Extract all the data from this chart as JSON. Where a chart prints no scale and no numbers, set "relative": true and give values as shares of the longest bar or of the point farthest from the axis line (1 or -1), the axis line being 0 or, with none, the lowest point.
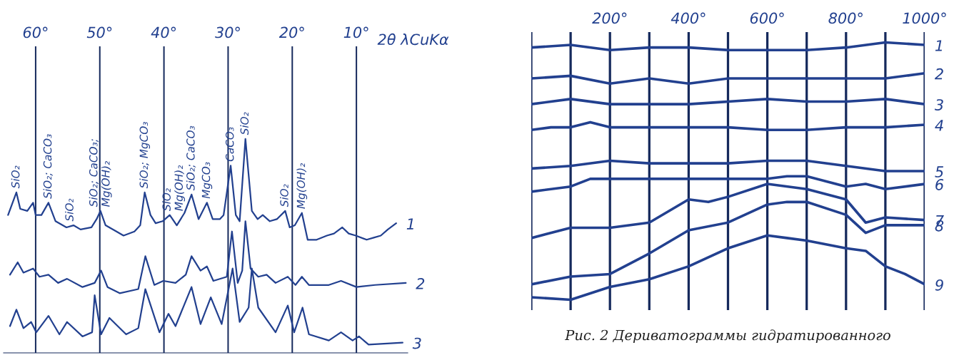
{
  "chart_data": [
    {
      "type": "line",
      "relative": true,
      "xlabel": "2θ λCuKα",
      "xlim": [
        65,
        2
      ],
      "xticks": [
        {
          "value": 60,
          "label": "60°"
        },
        {
          "value": 50,
          "label": "50°"
        },
        {
          "value": 40,
          "label": "40°"
        },
        {
          "value": 30,
          "label": "30°"
        },
        {
          "value": 20,
          "label": "20°"
        },
        {
          "value": 10,
          "label": "10°"
        }
      ],
      "grid": "x",
      "legend": false,
      "tick_labels": "x",
      "marker": "none",
      "line_style": "solid",
      "series": [
        {
          "name": "1",
          "color": "#22408f",
          "x": [
            64.3,
            63.0,
            62.4,
            61.3,
            60.4,
            60.0,
            59.1,
            58.0,
            56.9,
            55.2,
            54.1,
            53.0,
            51.3,
            50.5,
            49.9,
            49.1,
            47.4,
            46.3,
            44.6,
            43.7,
            43.0,
            42.1,
            41.3,
            40.2,
            39.1,
            38.0,
            36.8,
            35.7,
            34.6,
            33.3,
            32.4,
            31.3,
            30.7,
            29.6,
            28.8,
            28.2,
            27.3,
            26.3,
            25.4,
            24.6,
            23.5,
            22.4,
            21.1,
            20.4,
            19.6,
            18.5,
            17.6,
            16.2,
            14.6,
            13.5,
            12.2,
            11.2,
            10.1,
            8.4,
            7.3,
            6.2,
            5.1,
            3.8
          ],
          "values": [
            0.63,
            0.74,
            0.66,
            0.65,
            0.69,
            0.63,
            0.63,
            0.69,
            0.6,
            0.57,
            0.58,
            0.56,
            0.57,
            0.61,
            0.65,
            0.58,
            0.55,
            0.53,
            0.55,
            0.58,
            0.74,
            0.63,
            0.59,
            0.6,
            0.63,
            0.58,
            0.64,
            0.73,
            0.61,
            0.69,
            0.61,
            0.61,
            0.63,
            0.87,
            0.63,
            0.6,
            1.0,
            0.65,
            0.61,
            0.63,
            0.6,
            0.61,
            0.65,
            0.57,
            0.58,
            0.64,
            0.51,
            0.51,
            0.53,
            0.54,
            0.57,
            0.54,
            0.53,
            0.51,
            0.52,
            0.53,
            0.56,
            0.59
          ]
        },
        {
          "name": "2",
          "color": "#22408f",
          "x": [
            64.0,
            62.8,
            61.9,
            60.4,
            59.4,
            58.0,
            56.5,
            55.1,
            52.7,
            50.8,
            49.8,
            48.8,
            46.9,
            44.0,
            42.9,
            41.5,
            40.1,
            38.2,
            36.6,
            35.7,
            34.3,
            33.3,
            32.3,
            30.2,
            29.4,
            28.5,
            27.8,
            27.3,
            26.5,
            25.3,
            24.0,
            22.6,
            20.7,
            19.5,
            18.5,
            17.4,
            14.3,
            12.4,
            10.0,
            7.1,
            2.3
          ],
          "values": [
            0.34,
            0.4,
            0.35,
            0.37,
            0.33,
            0.34,
            0.3,
            0.32,
            0.28,
            0.3,
            0.36,
            0.28,
            0.25,
            0.27,
            0.43,
            0.29,
            0.31,
            0.3,
            0.34,
            0.43,
            0.36,
            0.38,
            0.31,
            0.33,
            0.55,
            0.3,
            0.36,
            0.6,
            0.37,
            0.33,
            0.34,
            0.3,
            0.33,
            0.29,
            0.33,
            0.29,
            0.29,
            0.31,
            0.28,
            0.29,
            0.3
          ]
        },
        {
          "name": "3",
          "color": "#22408f",
          "x": [
            64.0,
            63.0,
            61.9,
            60.7,
            59.9,
            58.0,
            56.3,
            55.1,
            52.7,
            51.2,
            50.8,
            49.8,
            48.5,
            45.9,
            44.0,
            42.9,
            40.7,
            39.3,
            38.2,
            35.7,
            34.3,
            32.7,
            31.0,
            29.3,
            28.2,
            26.8,
            26.3,
            25.3,
            22.6,
            20.7,
            19.7,
            18.4,
            17.4,
            14.3,
            12.4,
            10.6,
            9.6,
            8.1,
            2.8
          ],
          "values": [
            0.09,
            0.17,
            0.08,
            0.11,
            0.06,
            0.14,
            0.05,
            0.11,
            0.04,
            0.06,
            0.24,
            0.05,
            0.13,
            0.05,
            0.08,
            0.27,
            0.06,
            0.15,
            0.09,
            0.28,
            0.1,
            0.23,
            0.1,
            0.37,
            0.11,
            0.18,
            0.37,
            0.18,
            0.06,
            0.19,
            0.06,
            0.18,
            0.05,
            0.02,
            0.06,
            0.02,
            0.04,
            0.0,
            0.01
          ]
        }
      ],
      "annotations": [
        {
          "text": "SiO₂",
          "x": 63.0,
          "y": 0.74
        },
        {
          "text": "SiO₂; CaCO₃",
          "x": 58.0,
          "y": 0.69
        },
        {
          "text": "SiO₂",
          "x": 54.6,
          "y": 0.58
        },
        {
          "text": "SiO₂; CaCO₃;\nMg(OH)₂",
          "x": 49.9,
          "y": 0.65
        },
        {
          "text": "SiO₂; MgCO₃",
          "x": 43.0,
          "y": 0.74
        },
        {
          "text": "SiO₂\nMg(OH)₂",
          "x": 38.5,
          "y": 0.63
        },
        {
          "text": "SiO₂; CaCO₃",
          "x": 35.7,
          "y": 0.73
        },
        {
          "text": "MgCO₃",
          "x": 33.3,
          "y": 0.69
        },
        {
          "text": "CaCO₃",
          "x": 29.6,
          "y": 0.87
        },
        {
          "text": "SiO₂",
          "x": 27.3,
          "y": 1.0
        },
        {
          "text": "SiO₂",
          "x": 21.1,
          "y": 0.65
        },
        {
          "text": "Mg(OH)₂",
          "x": 18.5,
          "y": 0.64
        }
      ]
    },
    {
      "type": "line",
      "relative": true,
      "xlim": [
        0,
        1000
      ],
      "xticks": [
        {
          "value": 0,
          "label": null
        },
        {
          "value": 100,
          "label": null
        },
        {
          "value": 200,
          "label": "200°"
        },
        {
          "value": 300,
          "label": null
        },
        {
          "value": 400,
          "label": "400°"
        },
        {
          "value": 500,
          "label": null
        },
        {
          "value": 600,
          "label": "600°"
        },
        {
          "value": 700,
          "label": null
        },
        {
          "value": 800,
          "label": "800°"
        },
        {
          "value": 900,
          "label": null
        },
        {
          "value": 1000,
          "label": "1000°"
        }
      ],
      "grid": "x",
      "legend": false,
      "tick_labels": "x",
      "marker": "none",
      "line_style": "solid",
      "series": [
        {
          "name": "1",
          "color": "#22408f",
          "x": [
            0,
            100,
            200,
            300,
            400,
            500,
            600,
            700,
            800,
            900,
            1000
          ],
          "values": [
            0.98,
            0.99,
            0.97,
            0.98,
            0.98,
            0.97,
            0.97,
            0.97,
            0.98,
            1.0,
            0.99
          ]
        },
        {
          "name": "2",
          "color": "#22408f",
          "x": [
            0,
            100,
            200,
            300,
            400,
            500,
            600,
            700,
            800,
            900,
            1000
          ],
          "values": [
            0.86,
            0.87,
            0.84,
            0.86,
            0.84,
            0.86,
            0.86,
            0.86,
            0.86,
            0.86,
            0.88
          ]
        },
        {
          "name": "3",
          "color": "#22408f",
          "x": [
            0,
            100,
            200,
            300,
            400,
            500,
            600,
            700,
            800,
            900,
            1000
          ],
          "values": [
            0.76,
            0.78,
            0.76,
            0.76,
            0.76,
            0.77,
            0.78,
            0.77,
            0.77,
            0.78,
            0.76
          ]
        },
        {
          "name": "4",
          "color": "#22408f",
          "x": [
            0,
            50,
            100,
            150,
            200,
            300,
            400,
            500,
            600,
            700,
            800,
            900,
            1000
          ],
          "values": [
            0.66,
            0.67,
            0.67,
            0.69,
            0.67,
            0.67,
            0.67,
            0.67,
            0.66,
            0.66,
            0.67,
            0.67,
            0.68
          ]
        },
        {
          "name": "5",
          "color": "#22408f",
          "x": [
            0,
            100,
            200,
            300,
            400,
            500,
            600,
            700,
            800,
            900,
            1000
          ],
          "values": [
            0.51,
            0.52,
            0.54,
            0.53,
            0.53,
            0.53,
            0.54,
            0.54,
            0.52,
            0.5,
            0.5
          ]
        },
        {
          "name": "6",
          "color": "#22408f",
          "x": [
            0,
            100,
            150,
            200,
            300,
            400,
            500,
            600,
            650,
            700,
            750,
            800,
            850,
            900,
            1000
          ],
          "values": [
            0.42,
            0.44,
            0.47,
            0.47,
            0.47,
            0.47,
            0.47,
            0.47,
            0.48,
            0.48,
            0.46,
            0.44,
            0.45,
            0.43,
            0.45
          ]
        },
        {
          "name": "7",
          "color": "#22408f",
          "x": [
            0,
            100,
            200,
            300,
            400,
            450,
            500,
            600,
            700,
            800,
            850,
            900,
            1000
          ],
          "values": [
            0.24,
            0.28,
            0.28,
            0.3,
            0.39,
            0.38,
            0.4,
            0.45,
            0.43,
            0.39,
            0.3,
            0.32,
            0.31
          ]
        },
        {
          "name": "8",
          "color": "#22408f",
          "x": [
            0,
            100,
            200,
            300,
            400,
            500,
            600,
            650,
            700,
            800,
            850,
            900,
            1000
          ],
          "values": [
            0.06,
            0.09,
            0.1,
            0.18,
            0.27,
            0.3,
            0.37,
            0.38,
            0.38,
            0.33,
            0.26,
            0.29,
            0.29
          ]
        },
        {
          "name": "9",
          "color": "#22408f",
          "x": [
            0,
            100,
            200,
            300,
            400,
            500,
            600,
            650,
            700,
            800,
            850,
            900,
            950,
            1000
          ],
          "values": [
            0.01,
            0.0,
            0.05,
            0.08,
            0.13,
            0.2,
            0.25,
            0.24,
            0.23,
            0.2,
            0.19,
            0.13,
            0.1,
            0.06
          ]
        }
      ],
      "annotations": [
        "Рис. 2 Дериватограммы гидратированного"
      ]
    }
  ]
}
